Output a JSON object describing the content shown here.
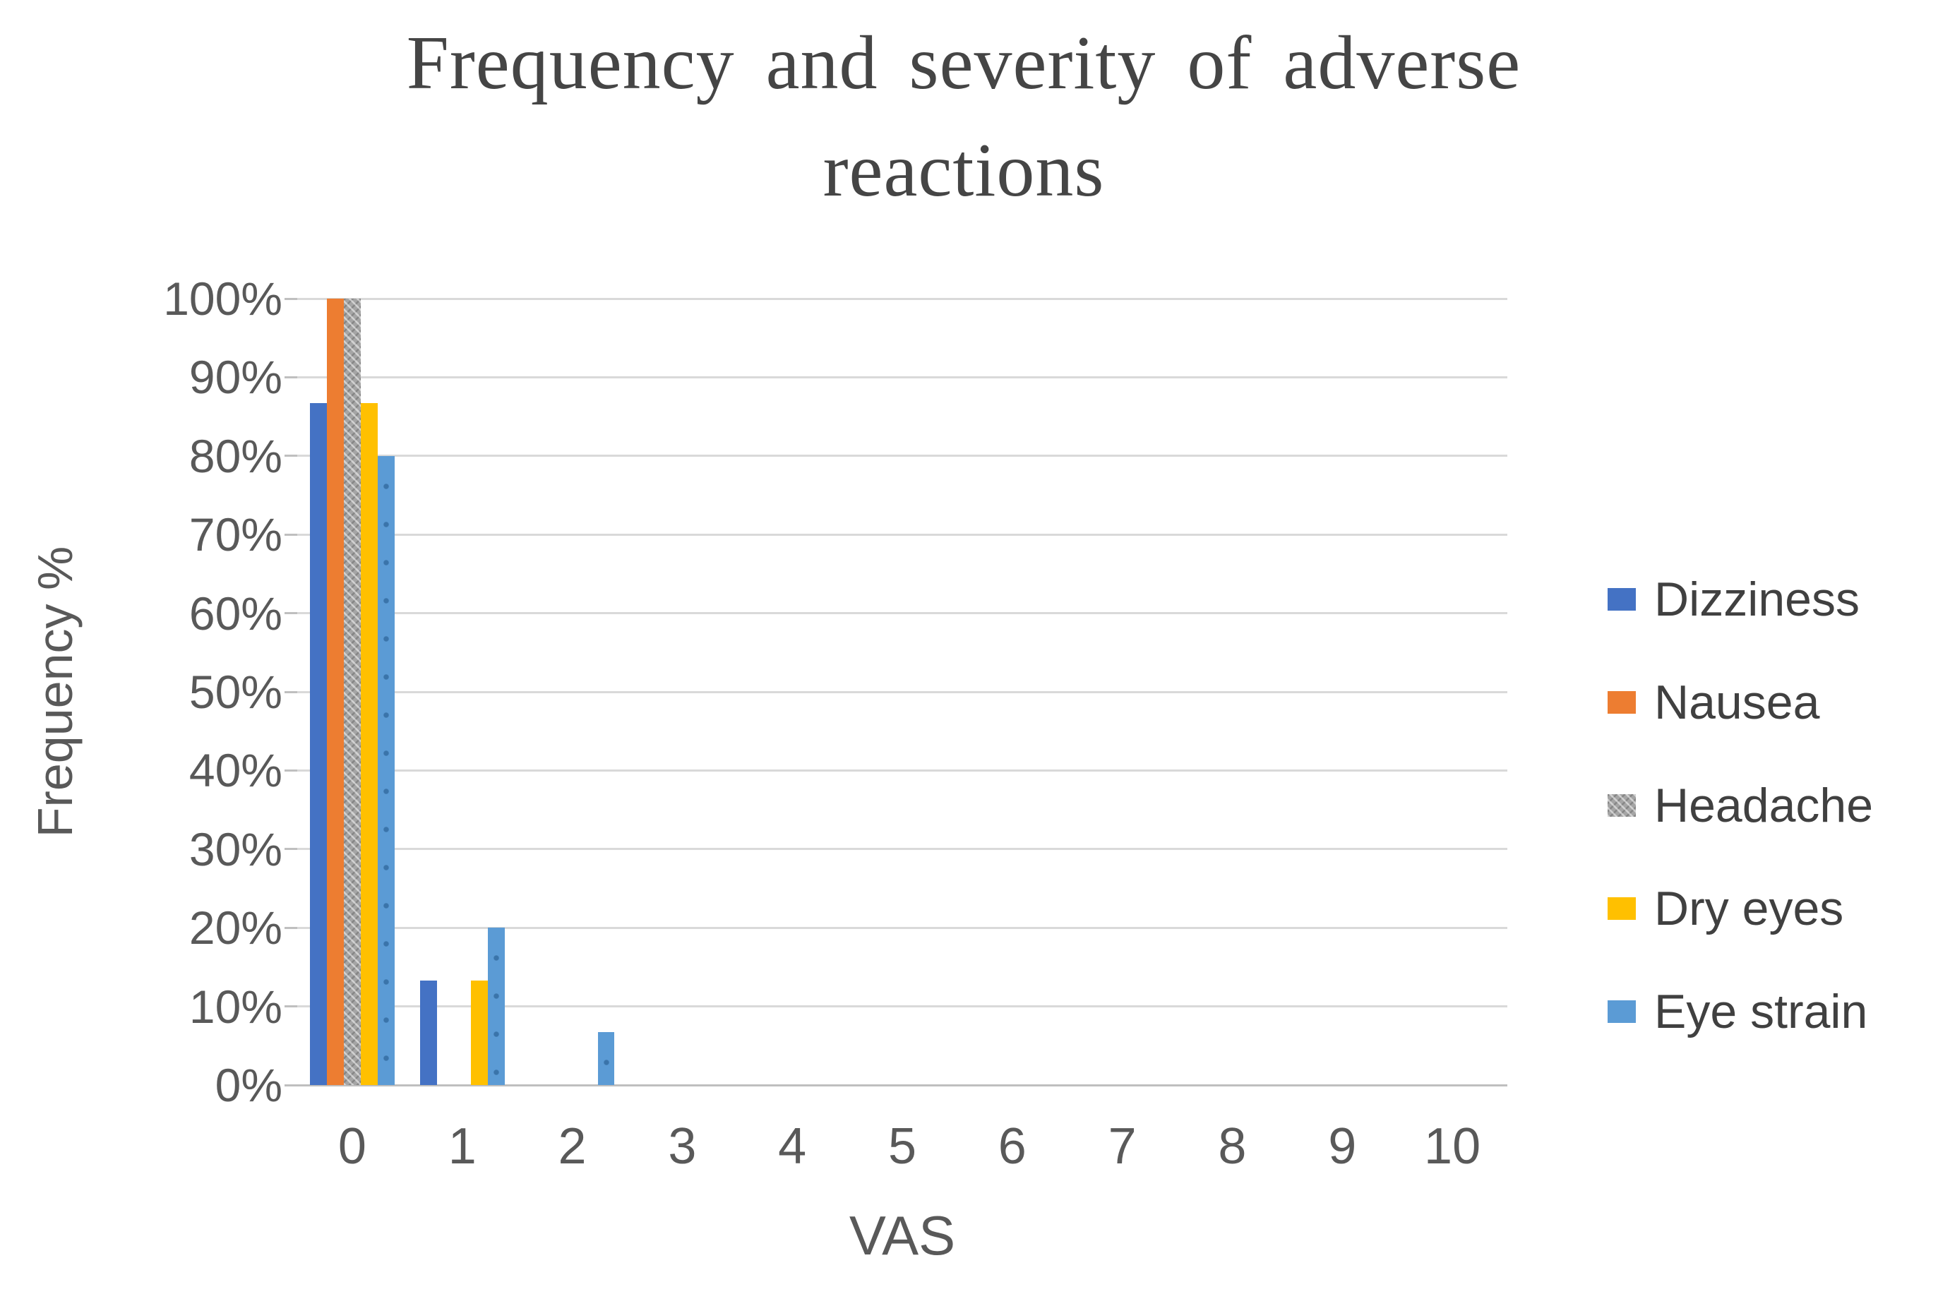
{
  "chart_data": {
    "type": "bar",
    "title": "Frequency and severity of adverse reactions",
    "xlabel": "VAS",
    "ylabel": "Frequency %",
    "categories": [
      "0",
      "1",
      "2",
      "3",
      "4",
      "5",
      "6",
      "7",
      "8",
      "9",
      "10"
    ],
    "y_ticks": [
      "100%",
      "90%",
      "80%",
      "70%",
      "60%",
      "50%",
      "40%",
      "30%",
      "20%",
      "10%",
      "0%"
    ],
    "ylim": [
      0,
      100
    ],
    "grid": true,
    "legend_position": "right",
    "series": [
      {
        "name": "Dizziness",
        "color": "#4472c4",
        "fill": "solid",
        "values": [
          86.7,
          13.3,
          0,
          0,
          0,
          0,
          0,
          0,
          0,
          0,
          0
        ]
      },
      {
        "name": "Nausea",
        "color": "#ed7d31",
        "fill": "solid",
        "values": [
          100,
          0,
          0,
          0,
          0,
          0,
          0,
          0,
          0,
          0,
          0
        ]
      },
      {
        "name": "Headache",
        "color": "#a5a5a5",
        "fill": "weave",
        "values": [
          100,
          0,
          0,
          0,
          0,
          0,
          0,
          0,
          0,
          0,
          0
        ]
      },
      {
        "name": "Dry eyes",
        "color": "#ffc000",
        "fill": "solid",
        "values": [
          86.7,
          13.3,
          0,
          0,
          0,
          0,
          0,
          0,
          0,
          0,
          0
        ]
      },
      {
        "name": "Eye strain",
        "color": "#5b9bd5",
        "fill": "dotted",
        "values": [
          80,
          20,
          6.7,
          0,
          0,
          0,
          0,
          0,
          0,
          0,
          0
        ]
      }
    ],
    "colors": {
      "gridline": "#d9d9d9",
      "axis_line": "#bfbfbf",
      "tick_text": "#595959",
      "title_text": "#454545",
      "legend_text": "#404040",
      "background": "#ffffff"
    }
  }
}
